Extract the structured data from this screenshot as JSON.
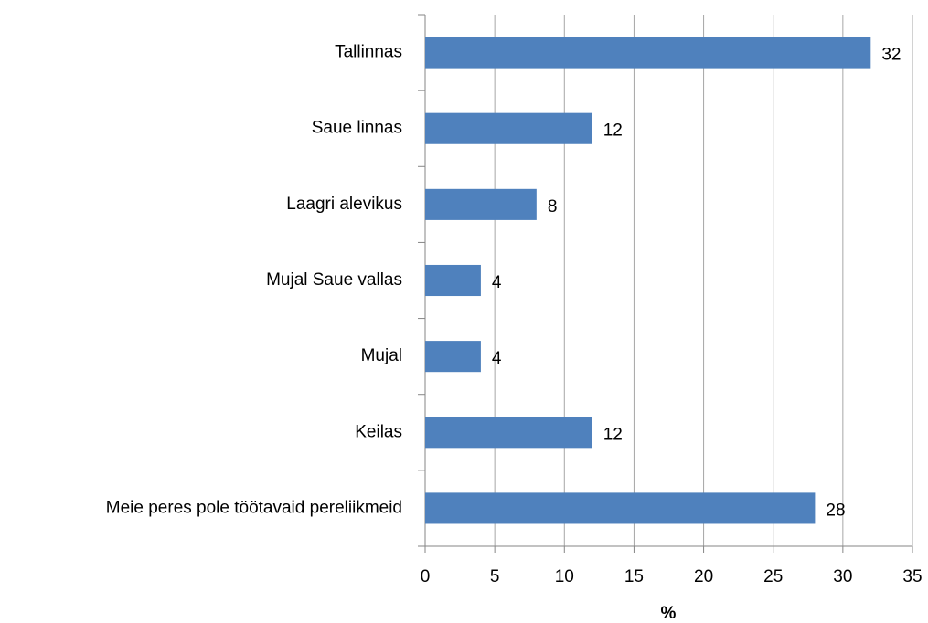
{
  "chart_data": {
    "type": "bar",
    "orientation": "horizontal",
    "categories": [
      "Tallinnas",
      "Saue linnas",
      "Laagri alevikus",
      "Mujal Saue vallas",
      "Mujal",
      "Keilas",
      "Meie peres pole töötavaid pereliikmeid"
    ],
    "values": [
      32,
      12,
      8,
      4,
      4,
      12,
      28
    ],
    "color": "#4f81bd",
    "xlabel": "%",
    "xlim": [
      0,
      35
    ],
    "xticks": [
      0,
      5,
      10,
      15,
      20,
      25,
      30,
      35
    ],
    "grid": true
  }
}
